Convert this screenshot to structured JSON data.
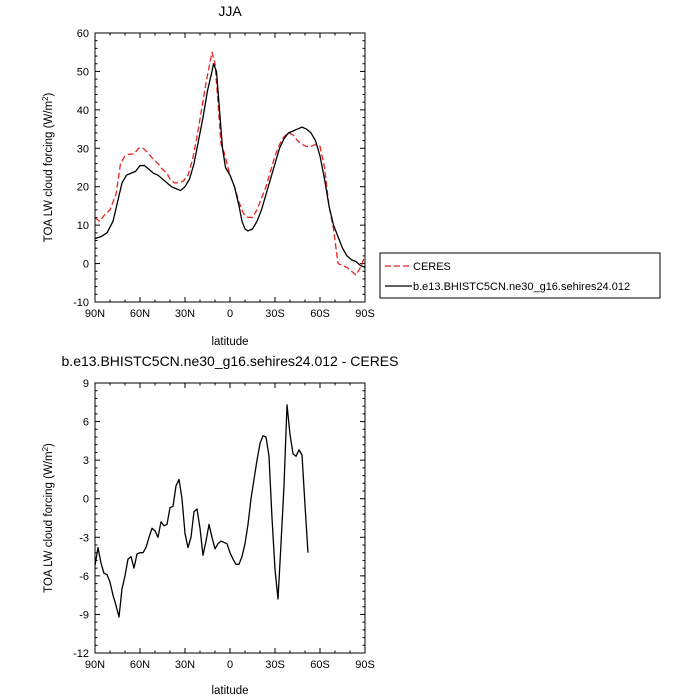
{
  "chart_data": [
    {
      "type": "line",
      "title": "JJA",
      "xlabel": "latitude",
      "ylabel": "TOA LW cloud forcing (W/m²)",
      "ylabel_main": "TOA LW cloud forcing (W/m",
      "ylabel_sup": "2",
      "ylabel_end": ")",
      "xlim": [
        90,
        -90
      ],
      "ylim": [
        -10,
        60
      ],
      "x_ticks": [
        90,
        60,
        30,
        0,
        -30,
        -60,
        -90
      ],
      "x_tick_labels": [
        "90N",
        "60N",
        "30N",
        "0",
        "30S",
        "60S",
        "90S"
      ],
      "y_ticks": [
        -10,
        0,
        10,
        20,
        30,
        40,
        50,
        60
      ],
      "y_tick_labels": [
        "-10",
        "0",
        "10",
        "20",
        "30",
        "40",
        "50",
        "60"
      ],
      "legend_position": "right",
      "series": [
        {
          "name": "CERES",
          "color": "#e8231e",
          "dash": "dashed",
          "points": [
            [
              90,
              12
            ],
            [
              87,
              11
            ],
            [
              84,
              12.5
            ],
            [
              80,
              14
            ],
            [
              76,
              18
            ],
            [
              73,
              26
            ],
            [
              70,
              28
            ],
            [
              67,
              28.5
            ],
            [
              64,
              28.5
            ],
            [
              61,
              30
            ],
            [
              58,
              30
            ],
            [
              55,
              29
            ],
            [
              52,
              27.5
            ],
            [
              48,
              26
            ],
            [
              45,
              24.5
            ],
            [
              42,
              23.5
            ],
            [
              40,
              22
            ],
            [
              37,
              21
            ],
            [
              34,
              21
            ],
            [
              31,
              21.5
            ],
            [
              28,
              23
            ],
            [
              25,
              27
            ],
            [
              22,
              33
            ],
            [
              19,
              40
            ],
            [
              16,
              47
            ],
            [
              13,
              53
            ],
            [
              12,
              55
            ],
            [
              10,
              52
            ],
            [
              8,
              42
            ],
            [
              6,
              31
            ],
            [
              4,
              29
            ],
            [
              2,
              26
            ],
            [
              0,
              23
            ],
            [
              -3,
              20
            ],
            [
              -6,
              16
            ],
            [
              -9,
              13
            ],
            [
              -12,
              12
            ],
            [
              -15,
              12
            ],
            [
              -18,
              14
            ],
            [
              -21,
              17
            ],
            [
              -24,
              20
            ],
            [
              -27,
              24
            ],
            [
              -30,
              28
            ],
            [
              -33,
              31
            ],
            [
              -36,
              33
            ],
            [
              -39,
              34
            ],
            [
              -42,
              33.5
            ],
            [
              -45,
              32
            ],
            [
              -48,
              31
            ],
            [
              -51,
              30.5
            ],
            [
              -54,
              30.5
            ],
            [
              -57,
              31
            ],
            [
              -60,
              30.5
            ],
            [
              -63,
              25
            ],
            [
              -66,
              15
            ],
            [
              -69,
              9
            ],
            [
              -72,
              0
            ],
            [
              -75,
              -0.5
            ],
            [
              -78,
              -1
            ],
            [
              -81,
              -2
            ],
            [
              -84,
              -3
            ],
            [
              -87,
              -1
            ],
            [
              -90,
              2
            ]
          ]
        },
        {
          "name": "b.e13.BHISTC5CN.ne30_g16.sehires24.012",
          "color": "#000000",
          "dash": "solid",
          "points": [
            [
              90,
              6.5
            ],
            [
              86,
              7
            ],
            [
              82,
              8
            ],
            [
              78,
              11
            ],
            [
              75,
              16
            ],
            [
              72,
              21
            ],
            [
              69,
              23
            ],
            [
              66,
              23.5
            ],
            [
              63,
              24
            ],
            [
              60,
              25.5
            ],
            [
              57,
              25.5
            ],
            [
              54,
              24.5
            ],
            [
              51,
              23.5
            ],
            [
              48,
              23
            ],
            [
              45,
              22
            ],
            [
              42,
              21
            ],
            [
              39,
              20
            ],
            [
              36,
              19.5
            ],
            [
              33,
              19
            ],
            [
              30,
              20
            ],
            [
              27,
              22
            ],
            [
              24,
              26
            ],
            [
              21,
              32
            ],
            [
              18,
              38
            ],
            [
              15,
              45
            ],
            [
              12,
              50
            ],
            [
              11,
              52
            ],
            [
              9,
              50
            ],
            [
              7,
              40
            ],
            [
              5,
              30
            ],
            [
              3,
              25
            ],
            [
              0,
              23
            ],
            [
              -3,
              20
            ],
            [
              -6,
              15
            ],
            [
              -8,
              11
            ],
            [
              -10,
              9
            ],
            [
              -12,
              8.5
            ],
            [
              -15,
              9
            ],
            [
              -18,
              11
            ],
            [
              -21,
              14
            ],
            [
              -24,
              18
            ],
            [
              -27,
              22
            ],
            [
              -30,
              26
            ],
            [
              -33,
              30
            ],
            [
              -36,
              32.5
            ],
            [
              -39,
              34
            ],
            [
              -42,
              34.5
            ],
            [
              -45,
              35
            ],
            [
              -48,
              35.5
            ],
            [
              -51,
              35
            ],
            [
              -54,
              34
            ],
            [
              -57,
              32
            ],
            [
              -60,
              28
            ],
            [
              -63,
              22
            ],
            [
              -66,
              15
            ],
            [
              -69,
              10
            ],
            [
              -72,
              7
            ],
            [
              -75,
              4
            ],
            [
              -78,
              2
            ],
            [
              -81,
              1
            ],
            [
              -84,
              0.5
            ],
            [
              -87,
              -0.5
            ],
            [
              -90,
              -1
            ]
          ]
        }
      ]
    },
    {
      "type": "line",
      "title": "b.e13.BHISTC5CN.ne30_g16.sehires24.012 - CERES",
      "xlabel": "latitude",
      "ylabel": "TOA LW cloud forcing (W/m²)",
      "ylabel_main": "TOA LW cloud forcing (W/m",
      "ylabel_sup": "2",
      "ylabel_end": ")",
      "xlim": [
        90,
        -90
      ],
      "ylim": [
        -12,
        9
      ],
      "x_ticks": [
        90,
        60,
        30,
        0,
        -30,
        -60,
        -90
      ],
      "x_tick_labels": [
        "90N",
        "60N",
        "30N",
        "0",
        "30S",
        "60S",
        "90S"
      ],
      "y_ticks": [
        -12,
        -9,
        -6,
        -3,
        0,
        3,
        6,
        9
      ],
      "y_tick_labels": [
        "-12",
        "-9",
        "-6",
        "-3",
        "0",
        "3",
        "6",
        "9"
      ],
      "series": [
        {
          "name": "",
          "color": "#000000",
          "dash": "solid",
          "points": [
            [
              90,
              -5.2
            ],
            [
              88,
              -3.8
            ],
            [
              86,
              -5
            ],
            [
              84,
              -5.8
            ],
            [
              82,
              -5.9
            ],
            [
              80,
              -6.5
            ],
            [
              78,
              -7.5
            ],
            [
              76,
              -8.3
            ],
            [
              74,
              -9.2
            ],
            [
              72,
              -7
            ],
            [
              70,
              -6
            ],
            [
              68,
              -4.7
            ],
            [
              66,
              -4.5
            ],
            [
              64,
              -5.4
            ],
            [
              62,
              -4.3
            ],
            [
              60,
              -4.2
            ],
            [
              58,
              -4.2
            ],
            [
              56,
              -3.8
            ],
            [
              54,
              -3
            ],
            [
              52,
              -2.3
            ],
            [
              50,
              -2.5
            ],
            [
              48,
              -3
            ],
            [
              46,
              -1.8
            ],
            [
              44,
              -2.1
            ],
            [
              42,
              -2
            ],
            [
              40,
              -0.7
            ],
            [
              38,
              -0.6
            ],
            [
              36,
              1
            ],
            [
              34,
              1.5
            ],
            [
              32,
              0
            ],
            [
              30,
              -2.7
            ],
            [
              28,
              -3.8
            ],
            [
              26,
              -3
            ],
            [
              24,
              -1
            ],
            [
              22,
              -0.8
            ],
            [
              20,
              -2.3
            ],
            [
              18,
              -4.4
            ],
            [
              16,
              -3.3
            ],
            [
              14,
              -2
            ],
            [
              12,
              -3
            ],
            [
              10,
              -3.9
            ],
            [
              8,
              -3.5
            ],
            [
              6,
              -3.3
            ],
            [
              4,
              -3.4
            ],
            [
              2,
              -3.5
            ],
            [
              0,
              -4.2
            ],
            [
              -2,
              -4.7
            ],
            [
              -4,
              -5.1
            ],
            [
              -6,
              -5.1
            ],
            [
              -8,
              -4.5
            ],
            [
              -10,
              -3.5
            ],
            [
              -12,
              -2
            ],
            [
              -14,
              0
            ],
            [
              -16,
              1.5
            ],
            [
              -18,
              3
            ],
            [
              -20,
              4.3
            ],
            [
              -22,
              4.9
            ],
            [
              -24,
              4.8
            ],
            [
              -26,
              3.3
            ],
            [
              -28,
              -1.5
            ],
            [
              -30,
              -5.5
            ],
            [
              -32,
              -7.8
            ],
            [
              -34,
              -3.5
            ],
            [
              -36,
              1
            ],
            [
              -38,
              7.3
            ],
            [
              -40,
              5
            ],
            [
              -42,
              3.5
            ],
            [
              -44,
              3.3
            ],
            [
              -46,
              3.8
            ],
            [
              -48,
              3.4
            ],
            [
              -50,
              -0.5
            ],
            [
              -52,
              -4.2
            ]
          ]
        }
      ]
    }
  ]
}
